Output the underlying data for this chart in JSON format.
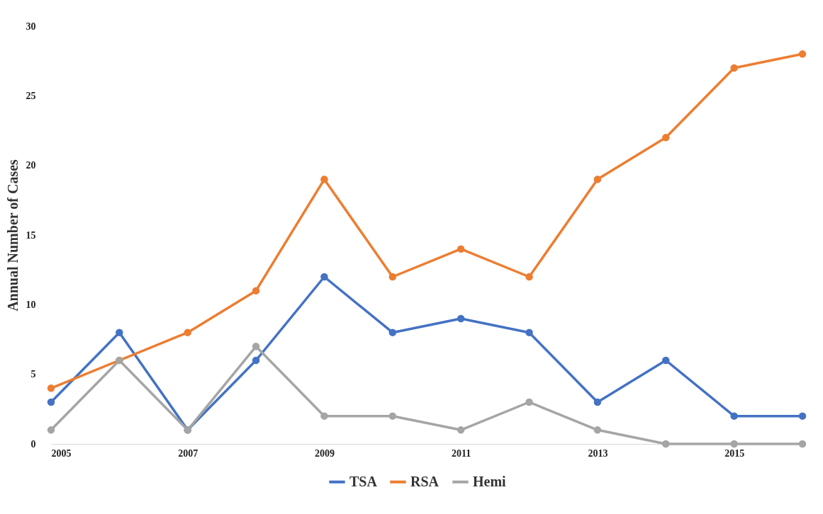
{
  "chart_data": {
    "type": "line",
    "ylabel": "Annual Number of Cases",
    "x": [
      2005,
      2006,
      2007,
      2008,
      2009,
      2010,
      2011,
      2012,
      2013,
      2014,
      2015,
      2016
    ],
    "series": [
      {
        "name": "TSA",
        "color": "#4472c4",
        "values": [
          3,
          8,
          1,
          6,
          12,
          8,
          9,
          8,
          3,
          6,
          2,
          2
        ]
      },
      {
        "name": "RSA",
        "color": "#ed7d31",
        "values": [
          4,
          6,
          8,
          11,
          19,
          12,
          14,
          12,
          19,
          22,
          27,
          28
        ]
      },
      {
        "name": "Hemi",
        "color": "#a5a5a5",
        "values": [
          1,
          6,
          1,
          7,
          2,
          2,
          1,
          3,
          1,
          0,
          0,
          0
        ]
      }
    ],
    "xlim": [
      2005,
      2016
    ],
    "xticks": [
      2005,
      2007,
      2009,
      2011,
      2013,
      2015
    ],
    "ylim": [
      0,
      30
    ],
    "yticks": [
      0,
      5,
      10,
      15,
      20,
      25,
      30
    ],
    "grid": false,
    "legend": "bottom",
    "marker": "circle",
    "line_style": "solid"
  }
}
